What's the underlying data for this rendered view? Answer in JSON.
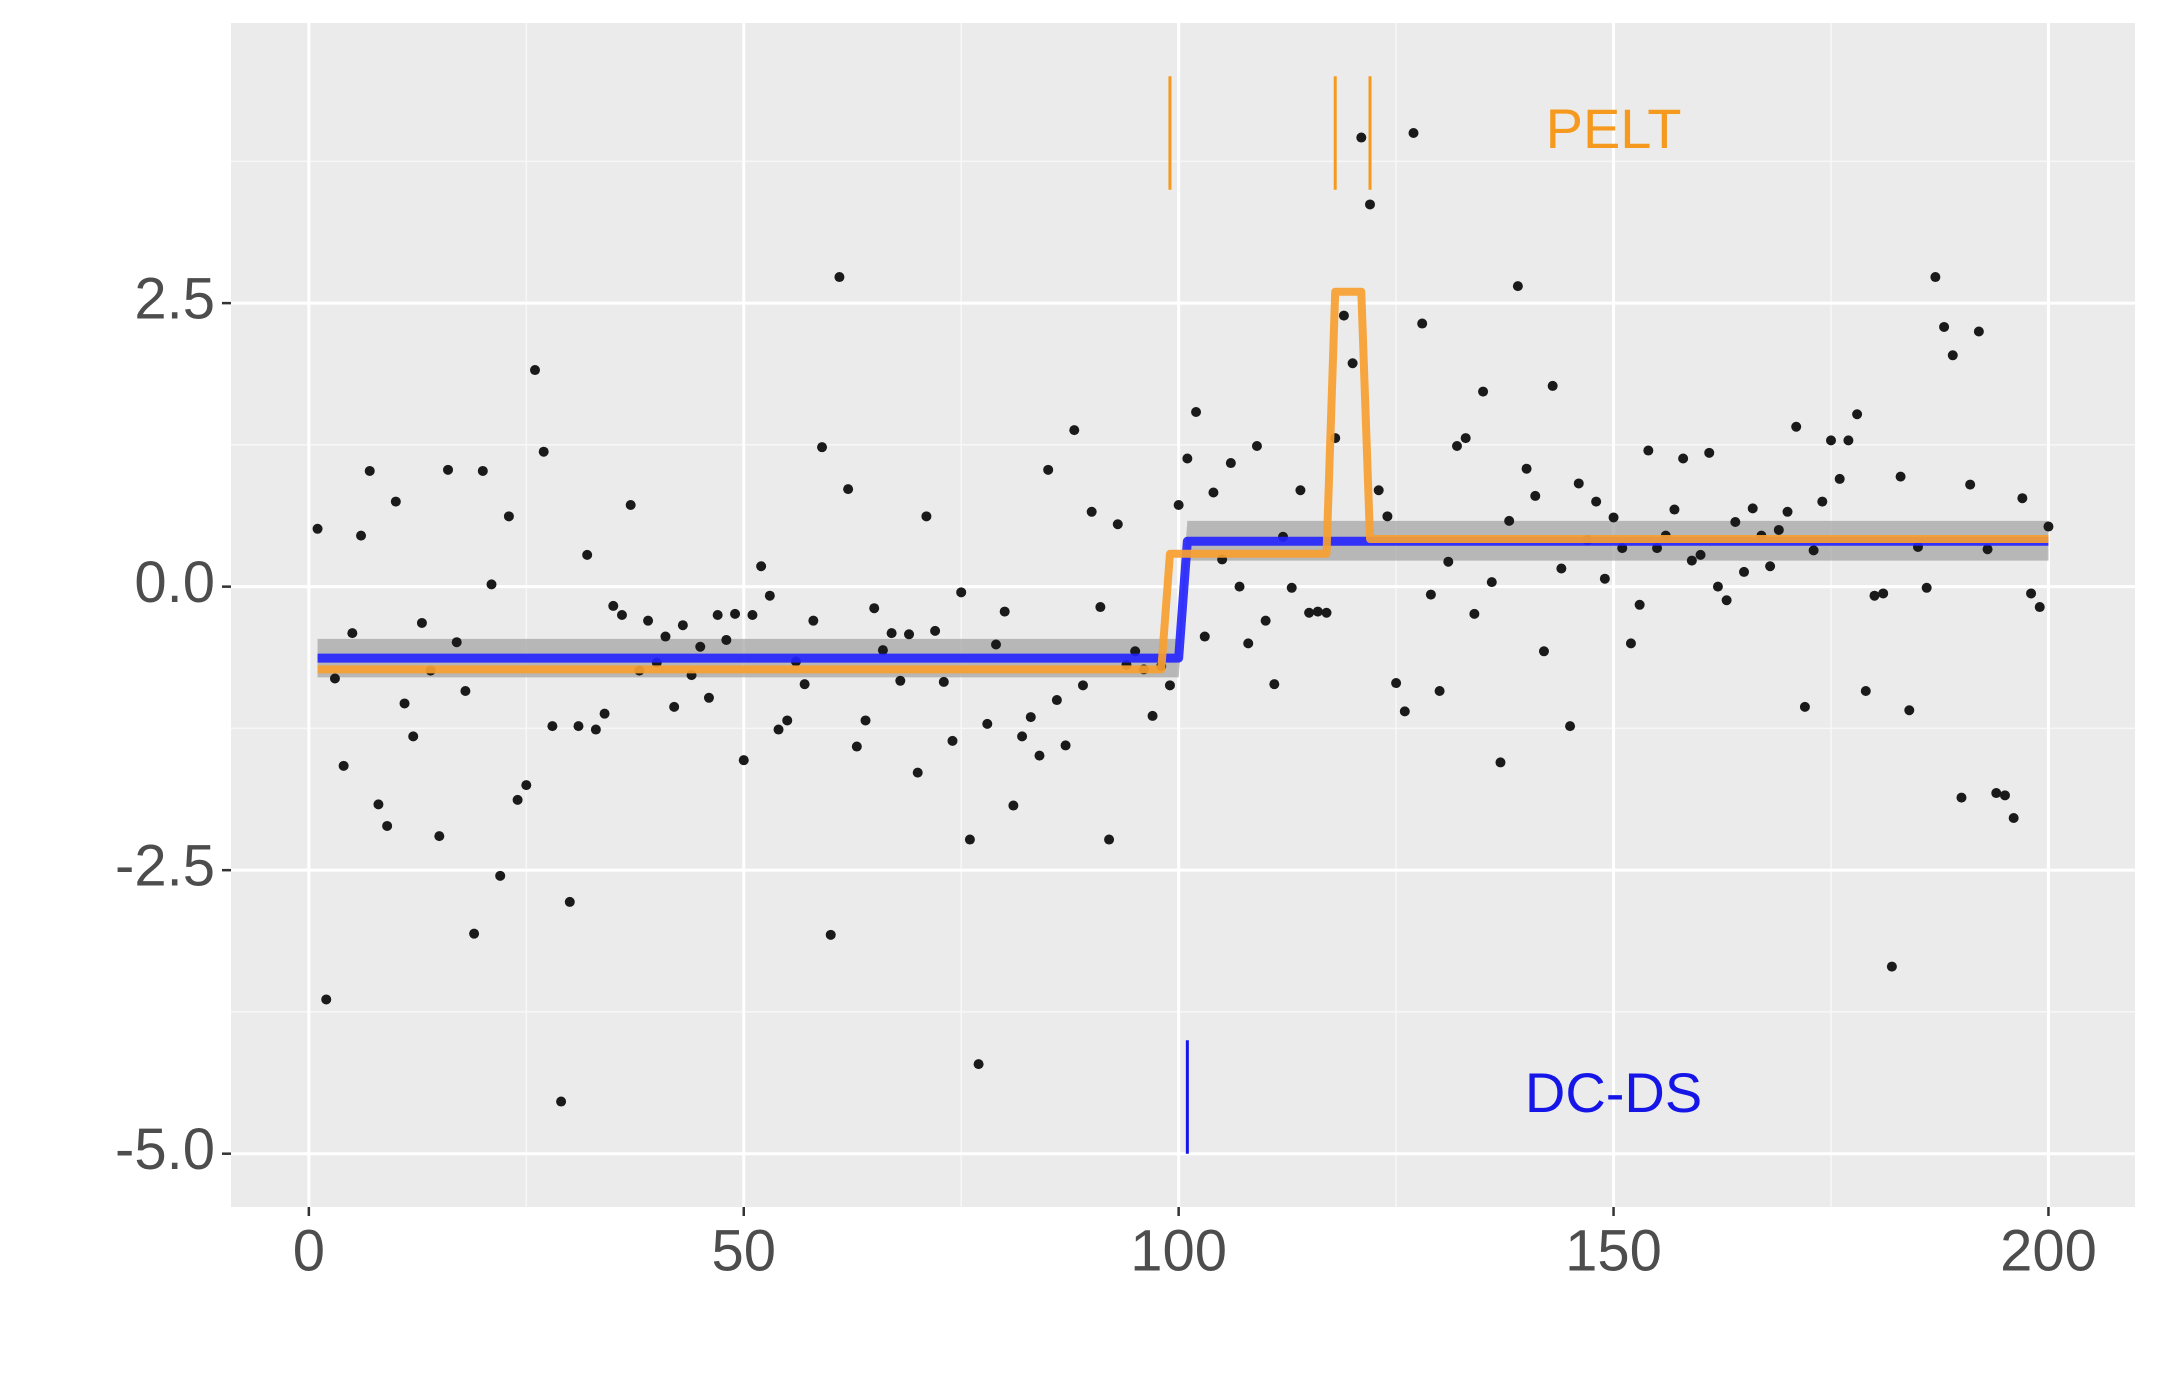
{
  "chart_data": {
    "type": "scatter",
    "xlim": [
      -8.95,
      209.95
    ],
    "ylim": [
      -5.47,
      4.97
    ],
    "xticks": [
      0,
      50,
      100,
      150,
      200
    ],
    "yticks": [
      2.5,
      {
        "value": 0,
        "label": "0.0"
      },
      -2.5,
      {
        "value": -5,
        "label": "-5.0"
      }
    ],
    "xminor": [
      25,
      75,
      125,
      175
    ],
    "yminor": [
      3.75,
      1.25,
      -1.25,
      -3.75
    ],
    "grid": true,
    "points": {
      "color": "#1a1a1a",
      "x": [
        1,
        2,
        3,
        4,
        5,
        6,
        7,
        8,
        9,
        10,
        11,
        12,
        13,
        14,
        15,
        16,
        17,
        18,
        19,
        20,
        21,
        22,
        23,
        24,
        25,
        26,
        27,
        28,
        29,
        30,
        31,
        32,
        33,
        34,
        35,
        36,
        37,
        38,
        39,
        40,
        41,
        42,
        43,
        44,
        45,
        46,
        47,
        48,
        49,
        50,
        51,
        52,
        53,
        54,
        55,
        56,
        57,
        58,
        59,
        60,
        61,
        62,
        63,
        64,
        65,
        66,
        67,
        68,
        69,
        70,
        71,
        72,
        73,
        74,
        75,
        76,
        77,
        78,
        79,
        80,
        81,
        82,
        83,
        84,
        85,
        86,
        87,
        88,
        89,
        90,
        91,
        92,
        93,
        94,
        95,
        96,
        97,
        98,
        99,
        100,
        101,
        102,
        103,
        104,
        105,
        106,
        107,
        108,
        109,
        110,
        111,
        112,
        113,
        114,
        115,
        116,
        117,
        118,
        119,
        120,
        121,
        122,
        123,
        124,
        125,
        126,
        127,
        128,
        129,
        130,
        131,
        132,
        133,
        134,
        135,
        136,
        137,
        138,
        139,
        140,
        141,
        142,
        143,
        144,
        145,
        146,
        147,
        148,
        149,
        150,
        151,
        152,
        153,
        154,
        155,
        156,
        157,
        158,
        159,
        160,
        161,
        162,
        163,
        164,
        165,
        166,
        167,
        168,
        169,
        170,
        171,
        172,
        173,
        174,
        175,
        176,
        177,
        178,
        179,
        180,
        181,
        182,
        183,
        184,
        185,
        186,
        187,
        188,
        189,
        190,
        191,
        192,
        193,
        194,
        195,
        196,
        197,
        198,
        199,
        200
      ],
      "values": [
        0.51,
        -3.64,
        -0.81,
        -1.58,
        -0.41,
        0.45,
        1.02,
        -1.92,
        -2.11,
        0.75,
        -1.03,
        -1.32,
        -0.32,
        -0.74,
        -2.2,
        1.03,
        -0.49,
        -0.92,
        -3.06,
        1.02,
        0.02,
        -2.55,
        0.62,
        -1.88,
        -1.75,
        1.91,
        1.19,
        -1.23,
        -4.54,
        -2.78,
        -1.23,
        0.28,
        -1.26,
        -1.12,
        -0.17,
        -0.25,
        0.72,
        -0.74,
        -0.3,
        -0.67,
        -0.44,
        -1.06,
        -0.34,
        -0.78,
        -0.53,
        -0.98,
        -0.25,
        -0.47,
        -0.24,
        -1.53,
        -0.25,
        0.18,
        -0.08,
        -1.26,
        -1.18,
        -0.66,
        -0.86,
        -0.3,
        1.23,
        -3.07,
        2.73,
        0.86,
        -1.41,
        -1.18,
        -0.19,
        -0.56,
        -0.41,
        -0.83,
        -0.42,
        -1.64,
        0.62,
        -0.39,
        -0.84,
        -1.36,
        -0.05,
        -2.23,
        -4.21,
        -1.21,
        -0.51,
        -0.22,
        -1.93,
        -1.32,
        -1.15,
        -1.49,
        1.03,
        -1.0,
        -1.4,
        1.38,
        -0.87,
        0.66,
        -0.18,
        -2.23,
        0.55,
        -0.69,
        -0.57,
        -0.73,
        -1.14,
        -0.7,
        -0.87,
        0.72,
        1.13,
        1.54,
        -0.44,
        0.83,
        0.24,
        1.09,
        0.0,
        -0.5,
        1.24,
        -0.3,
        -0.86,
        0.44,
        -0.01,
        0.85,
        -0.23,
        -0.22,
        -0.23,
        1.31,
        2.39,
        1.97,
        3.96,
        3.37,
        0.85,
        0.62,
        -0.85,
        -1.1,
        4.0,
        2.32,
        -0.07,
        -0.92,
        0.22,
        1.24,
        1.31,
        -0.24,
        1.72,
        0.04,
        -1.55,
        0.58,
        2.65,
        1.04,
        0.8,
        -0.57,
        1.77,
        0.16,
        -1.23,
        0.91,
        0.41,
        0.75,
        0.07,
        0.61,
        0.34,
        -0.5,
        -0.16,
        1.2,
        0.34,
        0.45,
        0.68,
        1.13,
        0.23,
        0.28,
        1.18,
        0.0,
        -0.12,
        0.57,
        0.13,
        0.69,
        0.45,
        0.18,
        0.5,
        0.66,
        1.41,
        -1.06,
        0.32,
        0.75,
        1.29,
        0.95,
        1.29,
        1.52,
        -0.92,
        -0.08,
        -0.06,
        -3.35,
        0.97,
        -1.09,
        0.35,
        -0.01,
        2.73,
        2.29,
        2.04,
        -1.86,
        0.9,
        2.25,
        0.33,
        -1.82,
        -1.84,
        -2.04,
        0.78,
        -0.06,
        -0.18,
        0.53
      ]
    },
    "band": {
      "color": "#a6a6a6",
      "x": [
        1,
        100,
        101,
        200
      ],
      "lower": [
        -0.8,
        -0.8,
        0.23,
        0.23
      ],
      "upper": [
        -0.46,
        -0.46,
        0.58,
        0.58
      ]
    },
    "series": [
      {
        "color": "#2222ff",
        "x": [
          1,
          100,
          101,
          200
        ],
        "values": [
          -0.63,
          -0.63,
          0.4,
          0.4
        ]
      },
      {
        "color": "#f7a030",
        "x": [
          1,
          98,
          99,
          117,
          118,
          121,
          122,
          200
        ],
        "values": [
          -0.73,
          -0.73,
          0.29,
          0.29,
          2.6,
          2.6,
          0.42,
          0.42
        ]
      }
    ],
    "changepoints": [
      {
        "color": "#f59a1e",
        "x": [
          99,
          118,
          122
        ],
        "y_range": [
          3.5,
          4.5
        ]
      },
      {
        "color": "#1515e8",
        "x": [
          101
        ],
        "y_range": [
          -5,
          -4
        ]
      }
    ],
    "annotations": [
      {
        "text": "PELT",
        "x": 150,
        "y": 4.0,
        "color": "#f59a1e"
      },
      {
        "text": "DC-DS",
        "x": 150,
        "y": -4.5,
        "color": "#1515e8"
      }
    ]
  }
}
